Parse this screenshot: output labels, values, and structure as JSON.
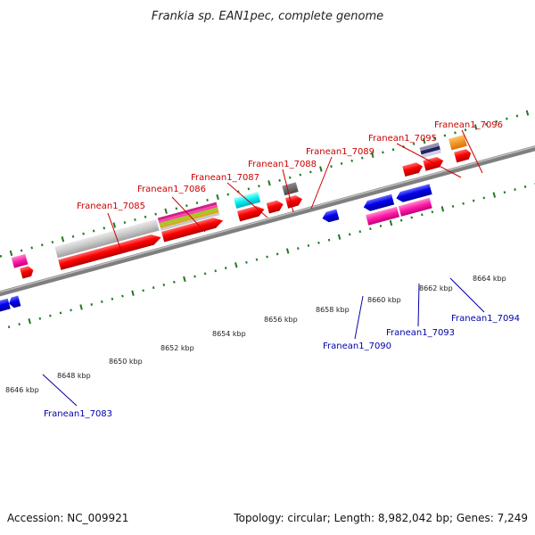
{
  "header": {
    "title": "Frankia sp. EAN1pec, complete genome"
  },
  "scale": {
    "unit": "kbp",
    "ticks": [
      {
        "label": "8646 kbp"
      },
      {
        "label": "8648 kbp"
      },
      {
        "label": "8650 kbp"
      },
      {
        "label": "8652 kbp"
      },
      {
        "label": "8654 kbp"
      },
      {
        "label": "8656 kbp"
      },
      {
        "label": "8658 kbp"
      },
      {
        "label": "8660 kbp"
      },
      {
        "label": "8662 kbp"
      },
      {
        "label": "8664 kbp"
      }
    ]
  },
  "genes_forward": [
    {
      "label": "Franean1_7085"
    },
    {
      "label": "Franean1_7086"
    },
    {
      "label": "Franean1_7087"
    },
    {
      "label": "Franean1_7088"
    },
    {
      "label": "Franean1_7089"
    },
    {
      "label": "Franean1_7095"
    },
    {
      "label": "Franean1_7096"
    }
  ],
  "genes_reverse": [
    {
      "label": "Franean1_7083"
    },
    {
      "label": "Franean1_7090"
    },
    {
      "label": "Franean1_7093"
    },
    {
      "label": "Franean1_7094"
    }
  ],
  "colors": {
    "forward_label": "#cc0000",
    "reverse_label": "#0000aa",
    "cds_forward": "#ff0000",
    "cds_reverse": "#0000ee",
    "backbone": "#808080",
    "tick": "#1f7a1f"
  },
  "footer": {
    "accession": "Accession: NC_009921",
    "summary": "Topology: circular; Length: 8,982,042 bp; Genes: 7,249"
  }
}
